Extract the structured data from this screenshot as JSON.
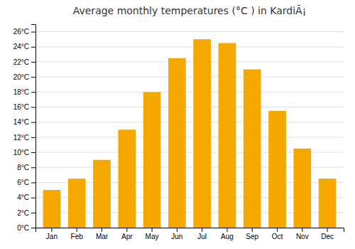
{
  "chart_data": {
    "type": "bar",
    "title": "Average monthly temperatures (°C ) in KardiÃ¡",
    "categories": [
      "Jan",
      "Feb",
      "Mar",
      "Apr",
      "May",
      "Jun",
      "Jul",
      "Aug",
      "Sep",
      "Oct",
      "Nov",
      "Dec"
    ],
    "values": [
      5.0,
      6.5,
      9.0,
      13.0,
      18.0,
      22.5,
      25.0,
      24.5,
      21.0,
      15.5,
      10.5,
      6.5
    ],
    "color": "#F5A800",
    "ylim": [
      0,
      27
    ],
    "yticks": [
      {
        "value": 0,
        "label": "0°C"
      },
      {
        "value": 2,
        "label": "2°C"
      },
      {
        "value": 4,
        "label": "4°C"
      },
      {
        "value": 6,
        "label": "6°C"
      },
      {
        "value": 8,
        "label": "8°C"
      },
      {
        "value": 10,
        "label": "10°C"
      },
      {
        "value": 12,
        "label": "12°C"
      },
      {
        "value": 14,
        "label": "14°C"
      },
      {
        "value": 16,
        "label": "16°C"
      },
      {
        "value": 18,
        "label": "18°C"
      },
      {
        "value": 20,
        "label": "20°C"
      },
      {
        "value": 22,
        "label": "22°C"
      },
      {
        "value": 24,
        "label": "24°C"
      },
      {
        "value": 26,
        "label": "26°C"
      }
    ],
    "grid": true
  }
}
